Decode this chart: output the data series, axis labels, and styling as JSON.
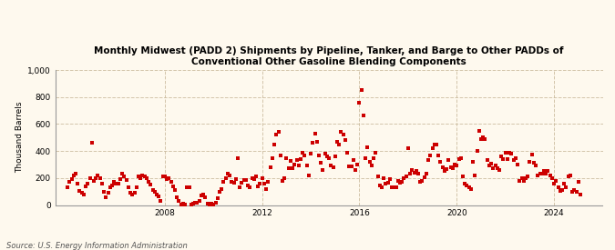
{
  "title": "Monthly Midwest (PADD 2) Shipments by Pipeline, Tanker, and Barge to Other PADDs of\nConventional Other Gasoline Blending Components",
  "ylabel": "Thousand Barrels",
  "source": "Source: U.S. Energy Information Administration",
  "background_color": "#fef9ee",
  "plot_bg_color": "#fef9ee",
  "marker_color": "#cc0000",
  "marker": "s",
  "marker_size": 12,
  "ylim": [
    0,
    1000
  ],
  "yticks": [
    0,
    200,
    400,
    600,
    800,
    1000
  ],
  "ytick_labels": [
    "0",
    "200",
    "400",
    "600",
    "800",
    "1,000"
  ],
  "xlim_start": 2003.5,
  "xlim_end": 2026.0,
  "xticks": [
    2008,
    2012,
    2016,
    2020,
    2024
  ],
  "grid_color": "#c8b89a",
  "grid_style": "--",
  "grid_alpha": 0.8,
  "data_x": [
    2004.0,
    2004.083,
    2004.167,
    2004.25,
    2004.333,
    2004.417,
    2004.5,
    2004.583,
    2004.667,
    2004.75,
    2004.833,
    2004.917,
    2005.0,
    2005.083,
    2005.167,
    2005.25,
    2005.333,
    2005.417,
    2005.5,
    2005.583,
    2005.667,
    2005.75,
    2005.833,
    2005.917,
    2006.0,
    2006.083,
    2006.167,
    2006.25,
    2006.333,
    2006.417,
    2006.5,
    2006.583,
    2006.667,
    2006.75,
    2006.833,
    2006.917,
    2007.0,
    2007.083,
    2007.167,
    2007.25,
    2007.333,
    2007.417,
    2007.5,
    2007.583,
    2007.667,
    2007.75,
    2007.833,
    2007.917,
    2008.0,
    2008.083,
    2008.167,
    2008.25,
    2008.333,
    2008.417,
    2008.5,
    2008.583,
    2008.667,
    2008.75,
    2008.833,
    2008.917,
    2009.0,
    2009.083,
    2009.167,
    2009.25,
    2009.333,
    2009.417,
    2009.5,
    2009.583,
    2009.667,
    2009.75,
    2009.833,
    2009.917,
    2010.0,
    2010.083,
    2010.167,
    2010.25,
    2010.333,
    2010.417,
    2010.5,
    2010.583,
    2010.667,
    2010.75,
    2010.833,
    2010.917,
    2011.0,
    2011.083,
    2011.167,
    2011.25,
    2011.333,
    2011.417,
    2011.5,
    2011.583,
    2011.667,
    2011.75,
    2011.833,
    2011.917,
    2012.0,
    2012.083,
    2012.167,
    2012.25,
    2012.333,
    2012.417,
    2012.5,
    2012.583,
    2012.667,
    2012.75,
    2012.833,
    2012.917,
    2013.0,
    2013.083,
    2013.167,
    2013.25,
    2013.333,
    2013.417,
    2013.5,
    2013.583,
    2013.667,
    2013.75,
    2013.833,
    2013.917,
    2014.0,
    2014.083,
    2014.167,
    2014.25,
    2014.333,
    2014.417,
    2014.5,
    2014.583,
    2014.667,
    2014.75,
    2014.833,
    2014.917,
    2015.0,
    2015.083,
    2015.167,
    2015.25,
    2015.333,
    2015.417,
    2015.5,
    2015.583,
    2015.667,
    2015.75,
    2015.833,
    2015.917,
    2016.0,
    2016.083,
    2016.167,
    2016.25,
    2016.333,
    2016.417,
    2016.5,
    2016.583,
    2016.667,
    2016.75,
    2016.833,
    2016.917,
    2017.0,
    2017.083,
    2017.167,
    2017.25,
    2017.333,
    2017.417,
    2017.5,
    2017.583,
    2017.667,
    2017.75,
    2017.833,
    2017.917,
    2018.0,
    2018.083,
    2018.167,
    2018.25,
    2018.333,
    2018.417,
    2018.5,
    2018.583,
    2018.667,
    2018.75,
    2018.833,
    2018.917,
    2019.0,
    2019.083,
    2019.167,
    2019.25,
    2019.333,
    2019.417,
    2019.5,
    2019.583,
    2019.667,
    2019.75,
    2019.833,
    2019.917,
    2020.0,
    2020.083,
    2020.167,
    2020.25,
    2020.333,
    2020.417,
    2020.5,
    2020.583,
    2020.667,
    2020.75,
    2020.833,
    2020.917,
    2021.0,
    2021.083,
    2021.167,
    2021.25,
    2021.333,
    2021.417,
    2021.5,
    2021.583,
    2021.667,
    2021.75,
    2021.833,
    2021.917,
    2022.0,
    2022.083,
    2022.167,
    2022.25,
    2022.333,
    2022.417,
    2022.5,
    2022.583,
    2022.667,
    2022.75,
    2022.833,
    2022.917,
    2023.0,
    2023.083,
    2023.167,
    2023.25,
    2023.333,
    2023.417,
    2023.5,
    2023.583,
    2023.667,
    2023.75,
    2023.833,
    2023.917,
    2024.0,
    2024.083,
    2024.167,
    2024.25,
    2024.333,
    2024.417,
    2024.5,
    2024.583,
    2024.667,
    2024.75,
    2024.833,
    2024.917,
    2025.0,
    2025.083
  ],
  "data_y": [
    130,
    175,
    190,
    220,
    230,
    160,
    105,
    90,
    80,
    135,
    155,
    200,
    460,
    180,
    200,
    220,
    200,
    160,
    100,
    60,
    90,
    130,
    145,
    170,
    160,
    155,
    195,
    235,
    210,
    185,
    130,
    90,
    80,
    90,
    130,
    210,
    200,
    220,
    215,
    200,
    175,
    150,
    110,
    100,
    80,
    65,
    30,
    210,
    215,
    190,
    200,
    175,
    140,
    110,
    60,
    30,
    5,
    10,
    5,
    130,
    130,
    5,
    10,
    15,
    20,
    30,
    70,
    80,
    55,
    10,
    5,
    10,
    5,
    15,
    50,
    100,
    120,
    175,
    200,
    230,
    220,
    175,
    165,
    195,
    350,
    130,
    165,
    185,
    185,
    145,
    130,
    200,
    195,
    210,
    135,
    155,
    200,
    160,
    120,
    170,
    280,
    350,
    450,
    520,
    540,
    370,
    180,
    200,
    350,
    275,
    325,
    270,
    300,
    330,
    290,
    340,
    385,
    370,
    295,
    220,
    380,
    460,
    530,
    470,
    370,
    310,
    260,
    380,
    360,
    350,
    290,
    280,
    360,
    470,
    450,
    540,
    520,
    480,
    390,
    285,
    285,
    330,
    260,
    300,
    760,
    855,
    665,
    350,
    430,
    320,
    290,
    350,
    390,
    215,
    145,
    130,
    200,
    155,
    165,
    195,
    130,
    130,
    130,
    180,
    165,
    175,
    200,
    215,
    420,
    230,
    260,
    240,
    250,
    235,
    175,
    180,
    205,
    235,
    330,
    370,
    420,
    450,
    450,
    370,
    320,
    280,
    250,
    265,
    330,
    280,
    270,
    300,
    290,
    340,
    350,
    210,
    155,
    145,
    130,
    120,
    320,
    220,
    400,
    550,
    490,
    500,
    490,
    330,
    295,
    305,
    275,
    295,
    275,
    260,
    360,
    340,
    390,
    340,
    390,
    380,
    330,
    350,
    300,
    180,
    200,
    180,
    200,
    215,
    320,
    375,
    310,
    295,
    220,
    230,
    230,
    250,
    230,
    250,
    220,
    200,
    160,
    180,
    130,
    105,
    110,
    155,
    130,
    210,
    220,
    100,
    110,
    100,
    175,
    80
  ]
}
